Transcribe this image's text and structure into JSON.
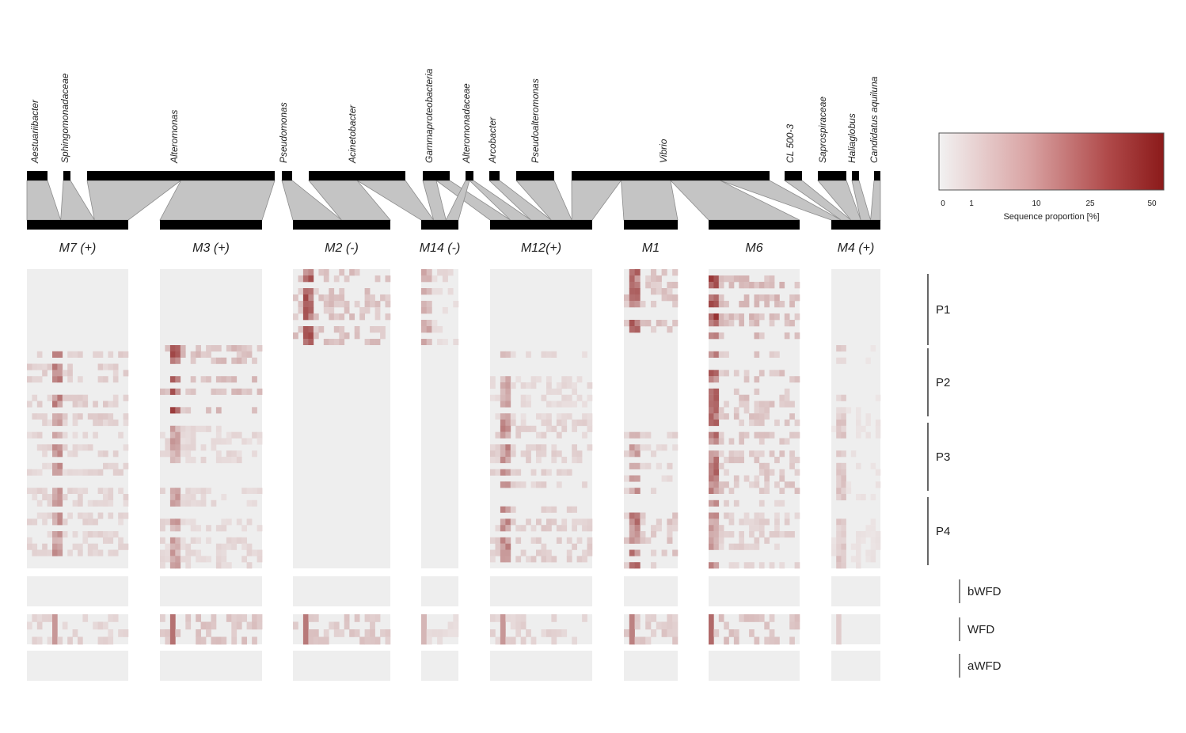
{
  "chart_data": {
    "type": "heatmap",
    "taxa": [
      "Aestuariibacter",
      "Sphingomonadaceae",
      "Alteromonas",
      "Pseudomonas",
      "Acinetobacter",
      "Gammaproteobacteria",
      "Alteromonadaceae",
      "Arcobacter",
      "Pseudoalteromonas",
      "Vibrio",
      "CL 500-3",
      "Saprospiraceae",
      "Haliaglobus",
      "Candidatus aquiluna"
    ],
    "modules": [
      "M7 (+)",
      "M3 (+)",
      "M2 (-)",
      "M14 (-)",
      "M12(+)",
      "M1",
      "M6",
      "M4 (+)"
    ],
    "periods": [
      "P1",
      "P2",
      "P3",
      "P4"
    ],
    "seasons": [
      "bWFD",
      "WFD",
      "aWFD"
    ],
    "legend": {
      "title": "Sequence proportion [%]",
      "ticks": [
        "0",
        "1",
        "10",
        "25",
        "50"
      ],
      "tick_values": [
        0,
        1,
        10,
        25,
        50
      ],
      "color_low": "#f2f2f2",
      "color_high": "#8b1a1a"
    },
    "links": [
      {
        "taxon": "Aestuariibacter",
        "module": "M7 (+)"
      },
      {
        "taxon": "Sphingomonadaceae",
        "module": "M7 (+)"
      },
      {
        "taxon": "Alteromonas",
        "module": "M7 (+)"
      },
      {
        "taxon": "Alteromonas",
        "module": "M3 (+)"
      },
      {
        "taxon": "Pseudomonas",
        "module": "M2 (-)"
      },
      {
        "taxon": "Acinetobacter",
        "module": "M2 (-)"
      },
      {
        "taxon": "Acinetobacter",
        "module": "M14 (-)"
      },
      {
        "taxon": "Gammaproteobacteria",
        "module": "M14 (-)"
      },
      {
        "taxon": "Gammaproteobacteria",
        "module": "M12(+)"
      },
      {
        "taxon": "Alteromonadaceae",
        "module": "M14 (-)"
      },
      {
        "taxon": "Alteromonadaceae",
        "module": "M12(+)"
      },
      {
        "taxon": "Arcobacter",
        "module": "M12(+)"
      },
      {
        "taxon": "Pseudoalteromonas",
        "module": "M12(+)"
      },
      {
        "taxon": "Vibrio",
        "module": "M12(+)"
      },
      {
        "taxon": "Vibrio",
        "module": "M1"
      },
      {
        "taxon": "Vibrio",
        "module": "M6"
      },
      {
        "taxon": "Vibrio",
        "module": "M4 (+)"
      },
      {
        "taxon": "CL 500-3",
        "module": "M4 (+)"
      },
      {
        "taxon": "Saprospiraceae",
        "module": "M4 (+)"
      },
      {
        "taxon": "Haliaglobus",
        "module": "M4 (+)"
      },
      {
        "taxon": "Candidatus aquiluna",
        "module": "M4 (+)"
      }
    ],
    "hotspots": [
      {
        "module": "M7 (+)",
        "period": "P2",
        "intensity": 0.6
      },
      {
        "module": "M7 (+)",
        "period": "P3",
        "intensity": 0.5
      },
      {
        "module": "M7 (+)",
        "period": "P4",
        "intensity": 0.5
      },
      {
        "module": "M3 (+)",
        "period": "P2",
        "intensity": 0.85
      },
      {
        "module": "M3 (+)",
        "period": "P3",
        "intensity": 0.45
      },
      {
        "module": "M3 (+)",
        "period": "P4",
        "intensity": 0.45
      },
      {
        "module": "M2 (-)",
        "period": "P1",
        "intensity": 0.8
      },
      {
        "module": "M14 (-)",
        "period": "P1",
        "intensity": 0.4
      },
      {
        "module": "M12(+)",
        "period": "P2",
        "intensity": 0.4
      },
      {
        "module": "M12(+)",
        "period": "P3",
        "intensity": 0.55
      },
      {
        "module": "M12(+)",
        "period": "P4",
        "intensity": 0.6
      },
      {
        "module": "M1",
        "period": "P1",
        "intensity": 0.75
      },
      {
        "module": "M1",
        "period": "P3",
        "intensity": 0.5
      },
      {
        "module": "M1",
        "period": "P4",
        "intensity": 0.7
      },
      {
        "module": "M6",
        "period": "P1",
        "intensity": 0.9
      },
      {
        "module": "M6",
        "period": "P2",
        "intensity": 0.75
      },
      {
        "module": "M6",
        "period": "P3",
        "intensity": 0.7
      },
      {
        "module": "M6",
        "period": "P4",
        "intensity": 0.55
      },
      {
        "module": "M4 (+)",
        "period": "P2",
        "intensity": 0.2
      },
      {
        "module": "M4 (+)",
        "period": "P3",
        "intensity": 0.25
      },
      {
        "module": "M4 (+)",
        "period": "P4",
        "intensity": 0.25
      }
    ]
  }
}
